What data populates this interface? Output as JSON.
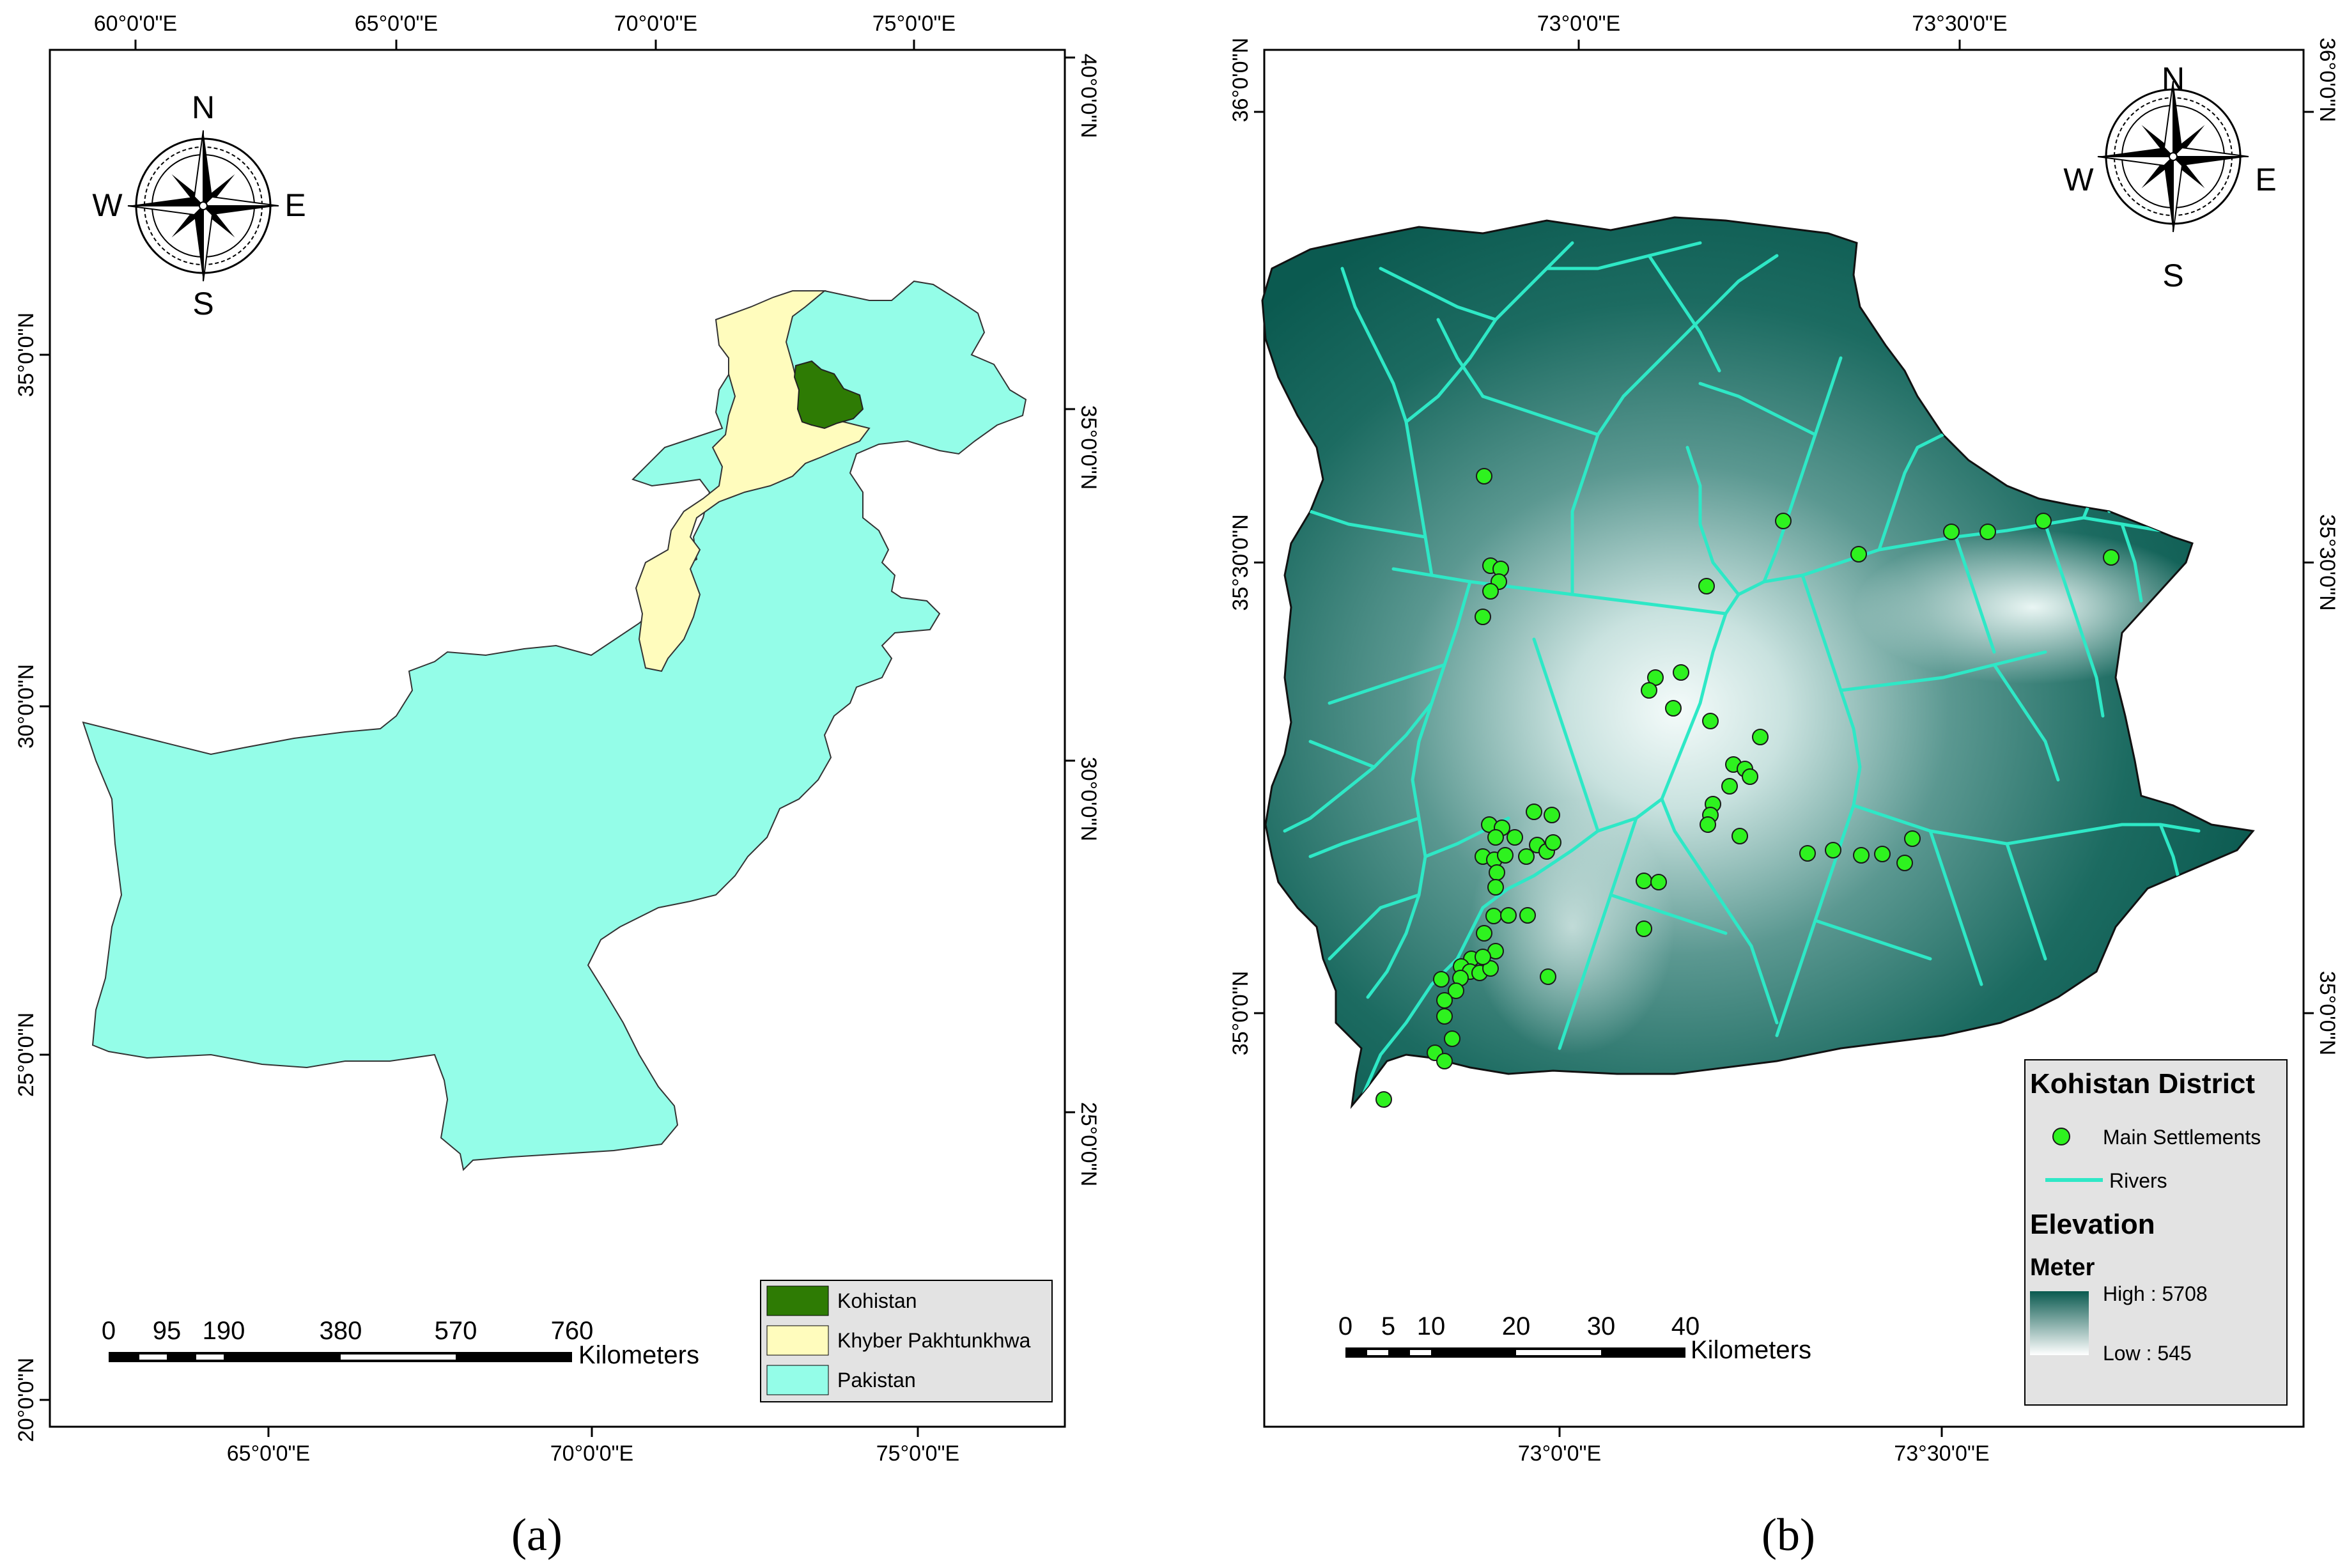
{
  "panel_a": {
    "caption": "(a)",
    "top_lon_labels": [
      "60°0'0\"E",
      "65°0'0\"E",
      "70°0'0\"E",
      "75°0'0\"E"
    ],
    "bottom_lon_labels": [
      "65°0'0\"E",
      "70°0'0\"E",
      "75°0'0\"E"
    ],
    "left_lat_labels": [
      "35°0'0\"N",
      "30°0'0\"N",
      "25°0'0\"N",
      "20°0'0\"N"
    ],
    "right_lat_labels": [
      "40°0'0\"N",
      "35°0'0\"N",
      "30°0'0\"N",
      "25°0'0\"N"
    ],
    "compass": {
      "n": "N",
      "s": "S",
      "e": "E",
      "w": "W"
    },
    "legend": [
      {
        "label": "Kohistan",
        "color": "#2e7b04"
      },
      {
        "label": "Khyber Pakhtunkhwa",
        "color": "#fffcbd"
      },
      {
        "label": "Pakistan",
        "color": "#94fde8"
      }
    ],
    "scalebar": {
      "ticks": [
        "0",
        "95",
        "190",
        "380",
        "570",
        "760"
      ],
      "unit": "Kilometers"
    }
  },
  "panel_b": {
    "caption": "(b)",
    "top_lon_labels": [
      "73°0'0\"E",
      "73°30'0\"E"
    ],
    "bottom_lon_labels": [
      "73°0'0\"E",
      "73°30'0\"E"
    ],
    "left_lat_labels": [
      "36°0'0\"N",
      "35°30'0\"N",
      "35°0'0\"N"
    ],
    "right_lat_labels": [
      "36°0'0\"N",
      "35°30'0\"N",
      "35°0'0\"N"
    ],
    "compass": {
      "n": "N",
      "s": "S",
      "e": "E",
      "w": "W"
    },
    "legend": {
      "title": "Kohistan District",
      "settlements_label": "Main Settlements",
      "rivers_label": "Rivers",
      "elevation_title": "Elevation",
      "unit": "Meter",
      "high": "High : 5708",
      "low": "Low : 545"
    },
    "scalebar": {
      "ticks": [
        "0",
        "5",
        "10",
        "20",
        "30",
        "40"
      ],
      "unit": "Kilometers"
    },
    "colors": {
      "high": "#0b5a50",
      "low": "#ffffff",
      "river": "#2ee8c6",
      "settlement": "#2ef21f"
    }
  }
}
